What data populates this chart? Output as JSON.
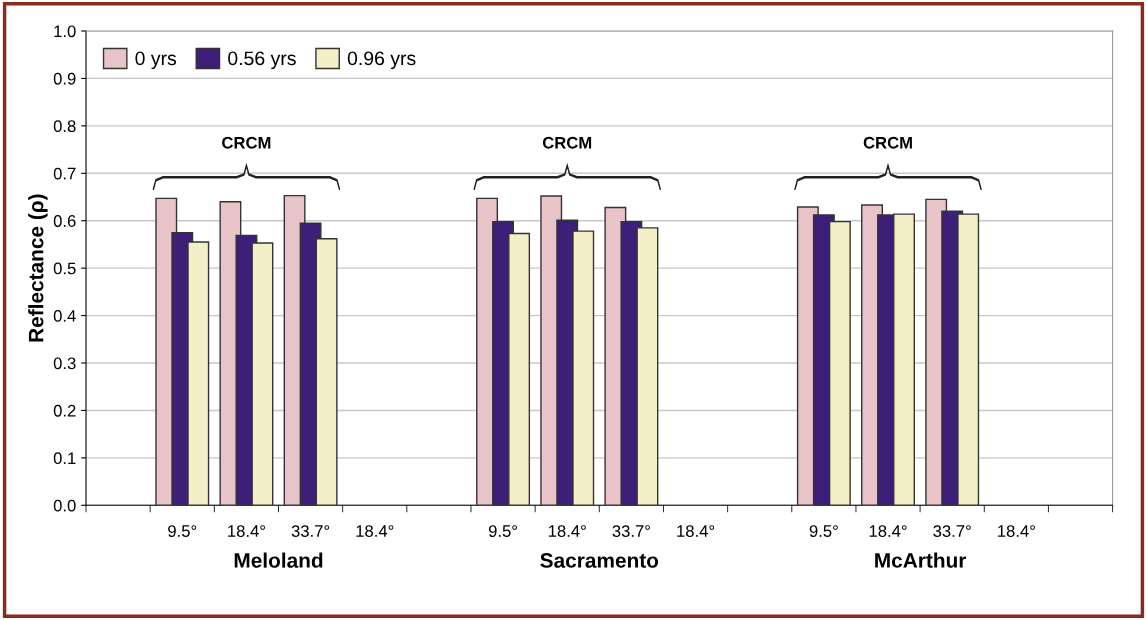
{
  "chart_data": {
    "type": "bar",
    "ylabel": "Reflectance (ρ)",
    "categories": [
      null,
      "9.5°",
      "18.4°",
      "33.7°",
      "18.4°",
      null,
      "9.5°",
      "18.4°",
      "33.7°",
      "18.4°",
      null,
      "9.5°",
      "18.4°",
      "33.7°",
      "18.4°",
      null
    ],
    "series": [
      {
        "name": "0 yrs",
        "color": "#e8c4c8",
        "values": [
          null,
          0.647,
          0.64,
          0.653,
          null,
          null,
          0.647,
          0.652,
          0.628,
          null,
          null,
          0.629,
          0.633,
          0.645,
          null,
          null
        ]
      },
      {
        "name": "0.56 yrs",
        "color": "#3d1f7a",
        "values": [
          null,
          0.575,
          0.569,
          0.595,
          null,
          null,
          0.598,
          0.601,
          0.598,
          null,
          null,
          0.612,
          0.612,
          0.62,
          null,
          null
        ]
      },
      {
        "name": "0.96 yrs",
        "color": "#f3f0c8",
        "values": [
          null,
          0.555,
          0.553,
          0.562,
          null,
          null,
          0.573,
          0.578,
          0.585,
          null,
          null,
          0.598,
          0.614,
          0.614,
          null,
          null
        ]
      }
    ],
    "ylim": [
      0,
      1
    ],
    "yticks": [
      {
        "value": 0,
        "label": "0.0"
      },
      {
        "value": 0.1,
        "label": "0.1"
      },
      {
        "value": 0.2,
        "label": "0.2"
      },
      {
        "value": 0.3,
        "label": "0.3"
      },
      {
        "value": 0.4,
        "label": "0.4"
      },
      {
        "value": 0.5,
        "label": "0.5"
      },
      {
        "value": 0.6,
        "label": "0.6"
      },
      {
        "value": 0.7,
        "label": "0.7"
      },
      {
        "value": 0.8,
        "label": "0.8"
      },
      {
        "value": 0.9,
        "label": "0.9"
      },
      {
        "value": 1,
        "label": "1.0"
      }
    ],
    "grid": "y",
    "legend": "top left",
    "annotations": [
      "CRCM",
      "CRCM",
      "CRCM",
      "Meloland",
      "Sacramento",
      "McArthur"
    ]
  }
}
